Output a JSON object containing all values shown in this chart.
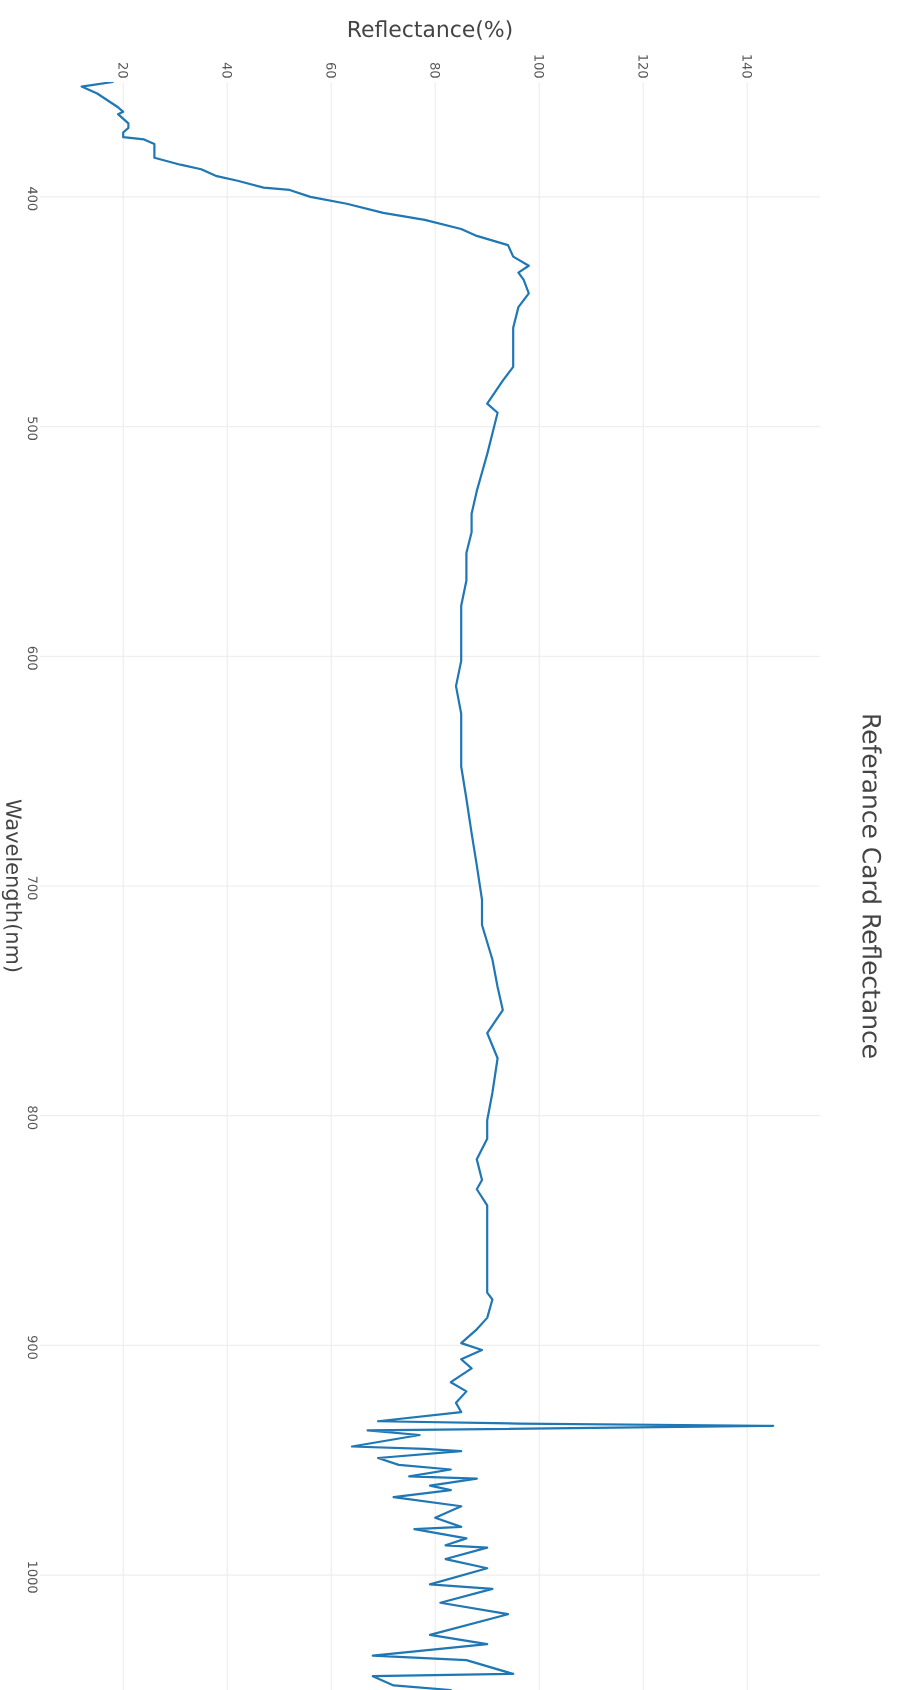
{
  "chart_data": {
    "type": "line",
    "title": "Referance Card Reflectance",
    "xlabel": "Reflectance(%)",
    "ylabel": "Wavelength(nm)",
    "x": [
      18,
      12,
      15,
      17,
      19,
      20,
      19,
      21,
      21,
      20,
      20,
      24,
      26,
      26,
      31,
      35,
      38,
      42,
      47,
      52,
      56,
      63,
      70,
      78,
      85,
      88,
      94,
      95,
      98,
      96,
      97,
      98,
      96,
      95,
      95,
      93,
      90,
      92,
      91,
      90,
      89,
      88,
      87,
      87,
      86,
      86,
      85,
      85,
      84,
      85,
      85,
      86,
      87,
      88,
      89,
      89,
      91,
      92,
      93,
      90,
      92,
      91,
      90,
      90,
      88,
      89,
      88,
      90,
      90,
      91,
      90,
      88,
      85,
      89,
      85,
      87,
      83,
      86,
      84,
      85,
      69,
      96,
      145,
      67,
      77,
      64,
      78,
      85,
      69,
      73,
      83,
      75,
      88,
      79,
      83,
      72,
      85,
      80,
      85,
      76,
      86,
      82,
      90,
      82,
      90,
      79,
      91,
      81,
      94,
      79,
      90,
      68,
      86,
      95,
      68,
      72,
      83
    ],
    "values": [
      350,
      352,
      355,
      358,
      361,
      363,
      364,
      368,
      370,
      372,
      374,
      375,
      377,
      383,
      386,
      388,
      391,
      393,
      396,
      397,
      400,
      403,
      407,
      410,
      414,
      417,
      421,
      426,
      430,
      433,
      436,
      442,
      448,
      457,
      474,
      480,
      490,
      494,
      503,
      512,
      520,
      528,
      538,
      546,
      555,
      567,
      578,
      602,
      613,
      625,
      648,
      662,
      677,
      691,
      706,
      717,
      732,
      744,
      754,
      764,
      775,
      790,
      802,
      810,
      819,
      828,
      832,
      839,
      877,
      880,
      888,
      893,
      899,
      902,
      906,
      910,
      916,
      920,
      925,
      929,
      933,
      934,
      935,
      937,
      939,
      944,
      945,
      946,
      949,
      952,
      954,
      957,
      958,
      961,
      963,
      966,
      970,
      975,
      979,
      980,
      984,
      987,
      988,
      993,
      997,
      1004,
      1006,
      1012,
      1017,
      1026,
      1030,
      1035,
      1037,
      1043,
      1044,
      1048,
      1050
    ],
    "color": "#1f77b4",
    "xlim": [
      4,
      154
    ],
    "ylim": [
      1050,
      350
    ],
    "xticks": [
      20,
      40,
      60,
      80,
      100,
      120,
      140
    ],
    "yticks": [
      400,
      500,
      600,
      700,
      800,
      900,
      1000
    ],
    "grid": true
  }
}
